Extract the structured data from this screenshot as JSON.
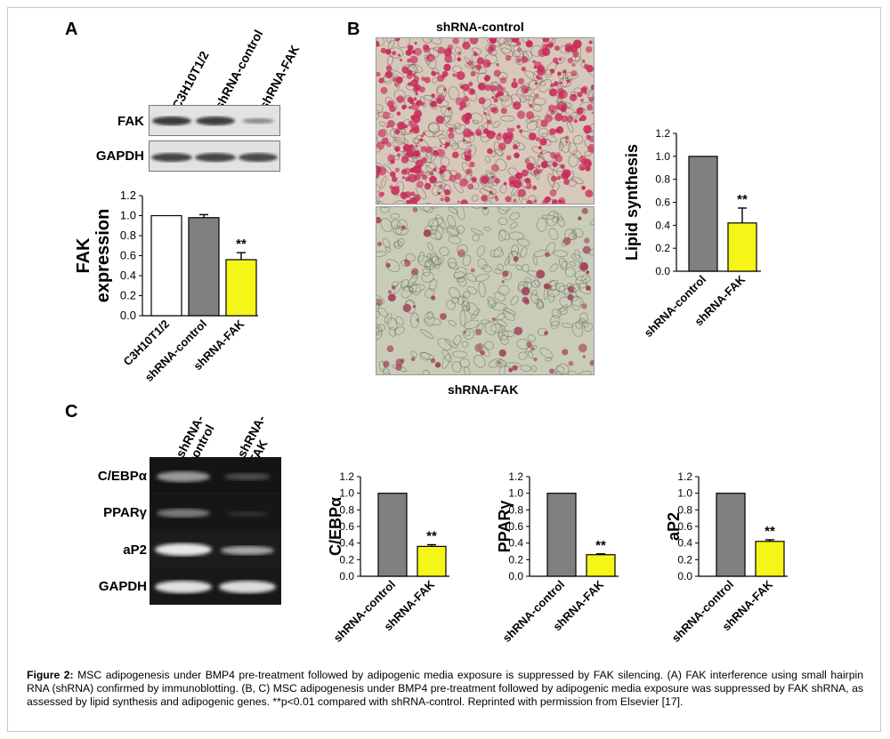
{
  "panels": {
    "a": "A",
    "b": "B",
    "c": "C"
  },
  "blot_a": {
    "lanes": [
      "C3H10T1/2",
      "shRNA-control",
      "shRNA-FAK"
    ],
    "rows": [
      "FAK",
      "GAPDH"
    ]
  },
  "micro_b": {
    "top_label": "shRNA-control",
    "bottom_label": "shRNA-FAK"
  },
  "blot_c": {
    "lanes": [
      "shRNA-control",
      "shRNA-FAK"
    ],
    "rows": [
      "C/EBPα",
      "PPARγ",
      "aP2",
      "GAPDH"
    ]
  },
  "caption": {
    "lead": "Figure 2:",
    "text": "MSC adipogenesis under BMP4 pre-treatment followed by adipogenic media exposure is suppressed by FAK silencing. (A) FAK interference using small hairpin RNA (shRNA) confirmed by immunoblotting. (B, C) MSC adipogenesis under BMP4 pre-treatment followed by adipogenic media exposure was suppressed by FAK shRNA, as assessed by lipid synthesis and adipogenic genes. **p<0.01 compared with shRNA-control. Reprinted with permission from Elsevier [17]."
  },
  "colors": {
    "white_bar": "#ffffff",
    "gray_bar": "#808080",
    "yellow_bar": "#f5f518",
    "red_cells": "#c8285a"
  },
  "chart_data": [
    {
      "type": "bar",
      "id": "fak-expression",
      "categories": [
        "C3H10T1/2",
        "shRNA-control",
        "shRNA-FAK"
      ],
      "values": [
        1.0,
        0.98,
        0.56
      ],
      "errors": [
        0,
        0.03,
        0.07
      ],
      "bar_colors": [
        "#ffffff",
        "#808080",
        "#f5f518"
      ],
      "annotations": [
        "",
        "",
        "**"
      ],
      "ylabel": "FAK\nexpression",
      "ylim": [
        0,
        1.2
      ],
      "yticks": [
        "0.0",
        "0.2",
        "0.4",
        "0.6",
        "0.8",
        "1.0",
        "1.2"
      ]
    },
    {
      "type": "bar",
      "id": "lipid-synthesis",
      "categories": [
        "shRNA-control",
        "shRNA-FAK"
      ],
      "values": [
        1.0,
        0.42
      ],
      "errors": [
        0,
        0.13
      ],
      "bar_colors": [
        "#808080",
        "#f5f518"
      ],
      "annotations": [
        "",
        "**"
      ],
      "ylabel": "Lipid synthesis",
      "ylim": [
        0,
        1.2
      ],
      "yticks": [
        "0.0",
        "0.2",
        "0.4",
        "0.6",
        "0.8",
        "1.0",
        "1.2"
      ]
    },
    {
      "type": "bar",
      "id": "cebpa",
      "categories": [
        "shRNA-control",
        "shRNA-FAK"
      ],
      "values": [
        1.0,
        0.36
      ],
      "errors": [
        0,
        0.02
      ],
      "bar_colors": [
        "#808080",
        "#f5f518"
      ],
      "annotations": [
        "",
        "**"
      ],
      "ylabel": "C/EBPα",
      "ylim": [
        0,
        1.2
      ],
      "yticks": [
        "0.0",
        "0.2",
        "0.4",
        "0.6",
        "0.8",
        "1.0",
        "1.2"
      ]
    },
    {
      "type": "bar",
      "id": "pparg",
      "categories": [
        "shRNA-control",
        "shRNA-FAK"
      ],
      "values": [
        1.0,
        0.26
      ],
      "errors": [
        0,
        0.01
      ],
      "bar_colors": [
        "#808080",
        "#f5f518"
      ],
      "annotations": [
        "",
        "**"
      ],
      "ylabel": "PPARγ",
      "ylim": [
        0,
        1.2
      ],
      "yticks": [
        "0.0",
        "0.2",
        "0.4",
        "0.6",
        "0.8",
        "1.0",
        "1.2"
      ]
    },
    {
      "type": "bar",
      "id": "ap2",
      "categories": [
        "shRNA-control",
        "shRNA-FAK"
      ],
      "values": [
        1.0,
        0.42
      ],
      "errors": [
        0,
        0.02
      ],
      "bar_colors": [
        "#808080",
        "#f5f518"
      ],
      "annotations": [
        "",
        "**"
      ],
      "ylabel": "aP2",
      "ylim": [
        0,
        1.2
      ],
      "yticks": [
        "0.0",
        "0.2",
        "0.4",
        "0.6",
        "0.8",
        "1.0",
        "1.2"
      ]
    }
  ]
}
